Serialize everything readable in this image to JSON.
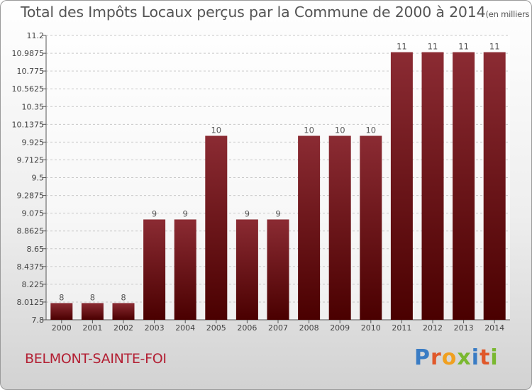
{
  "title": "Total des Impôts Locaux perçus par la Commune de 2000 à 2014",
  "subtitle": "(en milliers d'€)",
  "commune": "BELMONT-SAINTE-FOI",
  "logo": [
    "P",
    "r",
    "o",
    "x",
    "i",
    "t",
    "i"
  ],
  "colors": {
    "bar_top": "#8b2b33",
    "bar_bottom": "#4a0000",
    "commune_text": "#b32034",
    "logo": [
      "#3a7cc4",
      "#e0582a",
      "#f0a020",
      "#7ab830",
      "#3a7cc4",
      "#e0582a",
      "#7ab830"
    ]
  },
  "chart_data": {
    "type": "bar",
    "title": "Total des Impôts Locaux perçus par la Commune de 2000 à 2014",
    "ylabel": "en milliers d'€",
    "categories": [
      "2000",
      "2001",
      "2002",
      "2003",
      "2004",
      "2005",
      "2006",
      "2007",
      "2008",
      "2009",
      "2010",
      "2011",
      "2012",
      "2013",
      "2014"
    ],
    "values": [
      8,
      8,
      8,
      9,
      9,
      10,
      9,
      9,
      10,
      10,
      10,
      11,
      11,
      11,
      11
    ],
    "data_labels": [
      "8",
      "8",
      "8",
      "9",
      "9",
      "10",
      "9",
      "9",
      "10",
      "10",
      "10",
      "11",
      "11",
      "11",
      "11"
    ],
    "ylim": [
      7.8,
      11.2
    ],
    "yticks": [
      "7.8",
      "8.0125",
      "8.225",
      "8.4375",
      "8.65",
      "8.8625",
      "9.075",
      "9.2875",
      "9.5",
      "9.7125",
      "9.925",
      "10.1375",
      "10.35",
      "10.5625",
      "10.775",
      "10.9875",
      "11.2"
    ],
    "grid": true
  }
}
